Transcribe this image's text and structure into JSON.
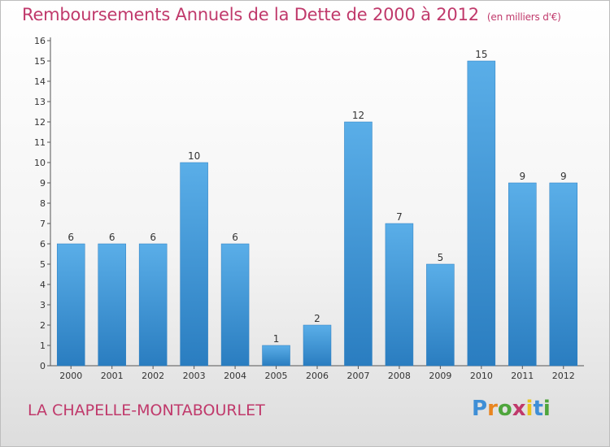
{
  "header": {
    "title": "Remboursements Annuels de la Dette de 2000 à 2012",
    "unit": "(en milliers d'€)"
  },
  "footer": {
    "commune": "LA CHAPELLE-MONTABOURLET",
    "logo_letters": [
      "P",
      "r",
      "o",
      "x",
      "i",
      "t",
      "i"
    ],
    "logo_colors": [
      "#3f8fd6",
      "#e9851f",
      "#4ea53c",
      "#c0396b",
      "#e9c31f",
      "#3f8fd6",
      "#4ea53c"
    ]
  },
  "chart_data": {
    "type": "bar",
    "categories": [
      "2000",
      "2001",
      "2002",
      "2003",
      "2004",
      "2005",
      "2006",
      "2007",
      "2008",
      "2009",
      "2010",
      "2011",
      "2012"
    ],
    "values": [
      6,
      6,
      6,
      10,
      6,
      1,
      2,
      12,
      7,
      5,
      15,
      9,
      9
    ],
    "y_ticks": [
      0,
      1,
      2,
      3,
      4,
      5,
      6,
      7,
      8,
      9,
      10,
      11,
      12,
      13,
      14,
      15,
      16
    ],
    "ylim": [
      0,
      16
    ],
    "grid": false,
    "bar_color_top": "#5aaee8",
    "bar_color_bottom": "#2a7dc0"
  }
}
